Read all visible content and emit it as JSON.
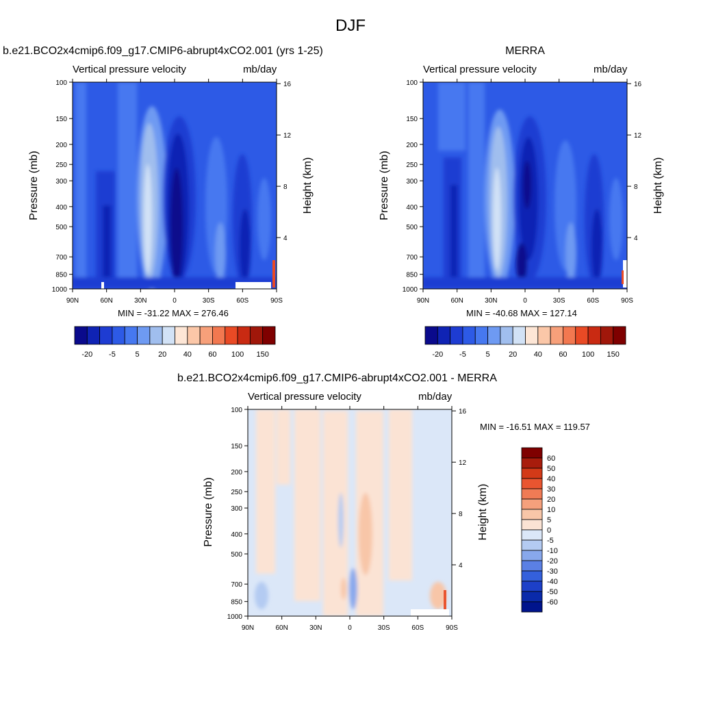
{
  "page": {
    "title": "DJF"
  },
  "colors": {
    "abs_palette": [
      "#0a0a8c",
      "#0f23b4",
      "#1e3cd2",
      "#2d5ae6",
      "#4678f0",
      "#6e9af2",
      "#a0beee",
      "#d2e2f6",
      "#fde6d6",
      "#fbc7a8",
      "#f7a07a",
      "#f27850",
      "#e94a25",
      "#c92a12",
      "#a0170a",
      "#7f0000"
    ],
    "diff_palette": [
      "#00148c",
      "#0a2aaa",
      "#1d40c8",
      "#3460dc",
      "#5b80e4",
      "#88a8ec",
      "#b4cbf2",
      "#dbe7f8",
      "#fbe3d4",
      "#f8c6a8",
      "#f5a07c",
      "#f07b55",
      "#e95530",
      "#d33a18",
      "#a81c0c",
      "#7f0000"
    ]
  },
  "chart_data": [
    {
      "type": "heatmap",
      "title": "b.e21.BCO2x4cmip6.f09_g17.CMIP6-abrupt4xCO2.001 (yrs 1-25)",
      "left_subtitle": "Vertical pressure velocity",
      "units": "mb/day",
      "ylabel": "Pressure (mb)",
      "y2label": "Height (km)",
      "x_ticks": [
        "90N",
        "60N",
        "30N",
        "0",
        "30S",
        "60S",
        "90S"
      ],
      "y_ticks": [
        "100",
        "150",
        "200",
        "250",
        "300",
        "400",
        "500",
        "700",
        "850",
        "1000"
      ],
      "y2_ticks": [
        "16",
        "12",
        "8",
        "4"
      ],
      "stats": "MIN = -31.22  MAX = 276.46",
      "colorbar_labels": [
        "-20",
        "-5",
        "5",
        "20",
        "40",
        "60",
        "100",
        "150"
      ]
    },
    {
      "type": "heatmap",
      "title": "MERRA",
      "left_subtitle": "Vertical pressure velocity",
      "units": "mb/day",
      "ylabel": "Pressure (mb)",
      "y2label": "Height (km)",
      "x_ticks": [
        "90N",
        "60N",
        "30N",
        "0",
        "30S",
        "60S",
        "90S"
      ],
      "y_ticks": [
        "100",
        "150",
        "200",
        "250",
        "300",
        "400",
        "500",
        "700",
        "850",
        "1000"
      ],
      "y2_ticks": [
        "16",
        "12",
        "8",
        "4"
      ],
      "stats": "MIN = -40.68  MAX = 127.14",
      "colorbar_labels": [
        "-20",
        "-5",
        "5",
        "20",
        "40",
        "60",
        "100",
        "150"
      ]
    },
    {
      "type": "heatmap",
      "title": "b.e21.BCO2x4cmip6.f09_g17.CMIP6-abrupt4xCO2.001 - MERRA",
      "left_subtitle": "Vertical pressure velocity",
      "units": "mb/day",
      "ylabel": "Pressure (mb)",
      "y2label": "Height (km)",
      "x_ticks": [
        "90N",
        "60N",
        "30N",
        "0",
        "30S",
        "60S",
        "90S"
      ],
      "y_ticks": [
        "100",
        "150",
        "200",
        "250",
        "300",
        "400",
        "500",
        "700",
        "850",
        "1000"
      ],
      "y2_ticks": [
        "16",
        "12",
        "8",
        "4"
      ],
      "stats": "MIN = -16.51  MAX = 119.57",
      "colorbar_labels": [
        "60",
        "50",
        "40",
        "30",
        "20",
        "10",
        "5",
        "0",
        "-5",
        "-10",
        "-20",
        "-30",
        "-40",
        "-50",
        "-60"
      ]
    }
  ]
}
